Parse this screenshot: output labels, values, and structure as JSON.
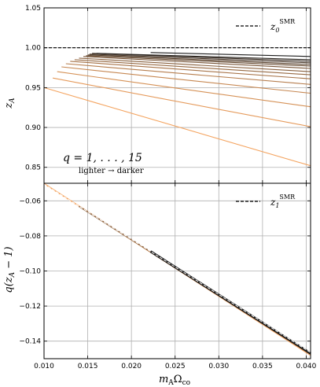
{
  "chart_data": [
    {
      "type": "line",
      "panel": "top",
      "ylabel": "z_A",
      "ylim": [
        0.83,
        1.05
      ],
      "xlim": [
        0.01,
        0.0405
      ],
      "yticks": [
        0.85,
        0.9,
        0.95,
        1.0,
        1.05
      ],
      "ytick_labels": [
        "0.85",
        "0.90",
        "0.95",
        "1.00",
        "1.05"
      ],
      "grid": true,
      "legend": {
        "placement": "top-right",
        "label": "z_0^SMR",
        "style": "dashed"
      },
      "annotation": {
        "main": "q = 1, . . . , 15",
        "sub": "lighter → darker"
      },
      "color_range": [
        "#f4a460",
        "#1c1c1c"
      ],
      "reference_line": {
        "name": "z_0^SMR",
        "value": 1.0
      },
      "series": [
        {
          "q": 1,
          "x": [
            0.01,
            0.0405
          ],
          "y": [
            0.95,
            0.852
          ]
        },
        {
          "q": 2,
          "x": [
            0.011,
            0.0405
          ],
          "y": [
            0.962,
            0.901
          ]
        },
        {
          "q": 3,
          "x": [
            0.0115,
            0.0405
          ],
          "y": [
            0.97,
            0.926
          ]
        },
        {
          "q": 4,
          "x": [
            0.012,
            0.0405
          ],
          "y": [
            0.976,
            0.943
          ]
        },
        {
          "q": 5,
          "x": [
            0.0125,
            0.0405
          ],
          "y": [
            0.98,
            0.954
          ]
        },
        {
          "q": 6,
          "x": [
            0.013,
            0.0405
          ],
          "y": [
            0.983,
            0.961
          ]
        },
        {
          "q": 7,
          "x": [
            0.0135,
            0.0405
          ],
          "y": [
            0.985,
            0.966
          ]
        },
        {
          "q": 8,
          "x": [
            0.014,
            0.0405
          ],
          "y": [
            0.987,
            0.97
          ]
        },
        {
          "q": 9,
          "x": [
            0.0145,
            0.0405
          ],
          "y": [
            0.989,
            0.974
          ]
        },
        {
          "q": 10,
          "x": [
            0.0148,
            0.0405
          ],
          "y": [
            0.99,
            0.977
          ]
        },
        {
          "q": 11,
          "x": [
            0.015,
            0.0405
          ],
          "y": [
            0.991,
            0.979
          ]
        },
        {
          "q": 12,
          "x": [
            0.0152,
            0.0405
          ],
          "y": [
            0.992,
            0.981
          ]
        },
        {
          "q": 13,
          "x": [
            0.0155,
            0.0405
          ],
          "y": [
            0.993,
            0.983
          ]
        },
        {
          "q": 14,
          "x": [
            0.016,
            0.0405
          ],
          "y": [
            0.993,
            0.985
          ]
        },
        {
          "q": 15,
          "x": [
            0.0222,
            0.0405
          ],
          "y": [
            0.994,
            0.989
          ]
        }
      ]
    },
    {
      "type": "line",
      "panel": "bottom",
      "xlabel": "m_A Ω_co",
      "ylabel": "q(z_A − 1)",
      "xlim": [
        0.01,
        0.0405
      ],
      "ylim": [
        -0.15,
        -0.05
      ],
      "xticks": [
        0.01,
        0.015,
        0.02,
        0.025,
        0.03,
        0.035,
        0.04
      ],
      "xtick_labels": [
        "0.010",
        "0.015",
        "0.020",
        "0.025",
        "0.030",
        "0.035",
        "0.040"
      ],
      "yticks": [
        -0.14,
        -0.12,
        -0.1,
        -0.08,
        -0.06
      ],
      "ytick_labels": [
        "−0.14",
        "−0.12",
        "−0.10",
        "−0.08",
        "−0.06"
      ],
      "grid": true,
      "legend": {
        "placement": "top-right",
        "label": "z_1^SMR",
        "style": "dashed"
      },
      "reference_line": {
        "name": "z_1^SMR",
        "x": [
          0.01,
          0.0405
        ],
        "y": [
          -0.0505,
          -0.1465
        ]
      },
      "series": [
        {
          "q": 1,
          "x": [
            0.01,
            0.0405
          ],
          "y": [
            -0.0502,
            -0.148
          ]
        },
        {
          "q": 8,
          "x": [
            0.014,
            0.0405
          ],
          "y": [
            -0.0632,
            -0.147
          ]
        },
        {
          "q": 15,
          "x": [
            0.0222,
            0.0405
          ],
          "y": [
            -0.0889,
            -0.147
          ]
        }
      ]
    }
  ]
}
